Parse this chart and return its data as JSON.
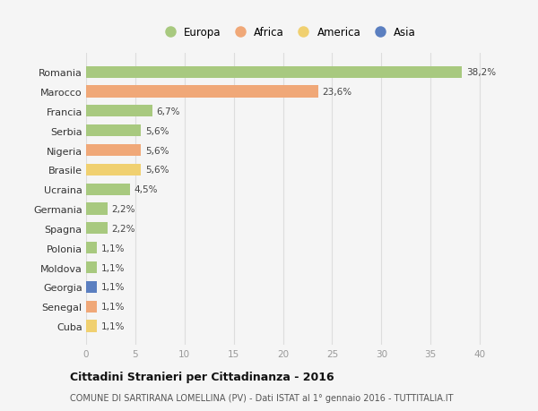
{
  "categories": [
    "Romania",
    "Marocco",
    "Francia",
    "Serbia",
    "Nigeria",
    "Brasile",
    "Ucraina",
    "Germania",
    "Spagna",
    "Polonia",
    "Moldova",
    "Georgia",
    "Senegal",
    "Cuba"
  ],
  "values": [
    38.2,
    23.6,
    6.7,
    5.6,
    5.6,
    5.6,
    4.5,
    2.2,
    2.2,
    1.1,
    1.1,
    1.1,
    1.1,
    1.1
  ],
  "labels": [
    "38,2%",
    "23,6%",
    "6,7%",
    "5,6%",
    "5,6%",
    "5,6%",
    "4,5%",
    "2,2%",
    "2,2%",
    "1,1%",
    "1,1%",
    "1,1%",
    "1,1%",
    "1,1%"
  ],
  "continents": [
    "Europa",
    "Africa",
    "Europa",
    "Europa",
    "Africa",
    "America",
    "Europa",
    "Europa",
    "Europa",
    "Europa",
    "Europa",
    "Asia",
    "Africa",
    "America"
  ],
  "colors": {
    "Europa": "#a8c97f",
    "Africa": "#f0a878",
    "America": "#f0d070",
    "Asia": "#5b7fc0"
  },
  "xlim": [
    0,
    41
  ],
  "xticks": [
    0,
    5,
    10,
    15,
    20,
    25,
    30,
    35,
    40
  ],
  "title": "Cittadini Stranieri per Cittadinanza - 2016",
  "subtitle": "COMUNE DI SARTIRANA LOMELLINA (PV) - Dati ISTAT al 1° gennaio 2016 - TUTTITALIA.IT",
  "background_color": "#f5f5f5",
  "bar_height": 0.6,
  "grid_color": "#dddddd",
  "legend_order": [
    "Europa",
    "Africa",
    "America",
    "Asia"
  ]
}
